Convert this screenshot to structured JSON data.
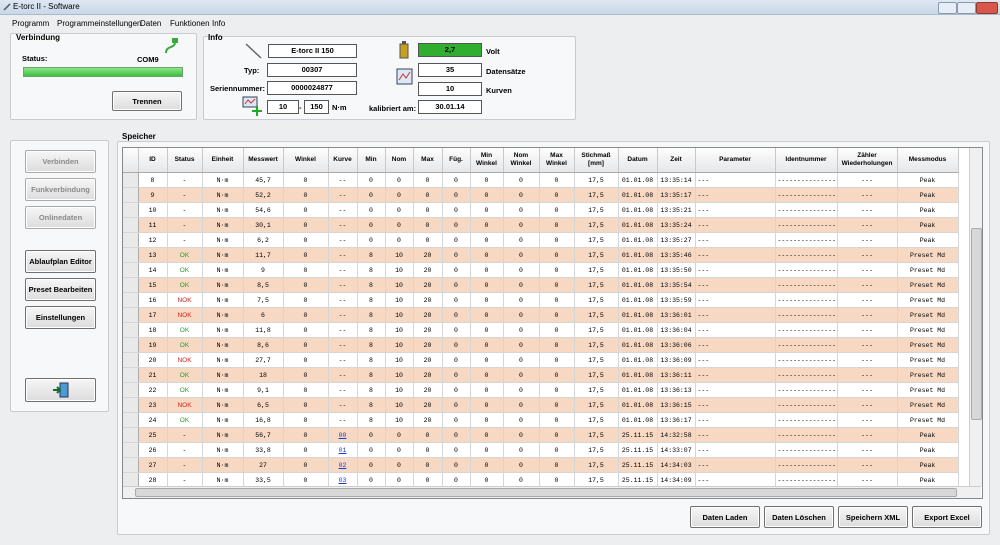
{
  "window": {
    "title": "E-torc II - Software"
  },
  "menu": [
    "Programm",
    "Programmeinstellungen",
    "Daten",
    "Funktionen",
    "Info"
  ],
  "verbindung": {
    "title": "Verbindung",
    "status_label": "Status:",
    "port": "COM9",
    "button": "Trennen"
  },
  "info": {
    "title": "Info",
    "device": "E-torc II 150",
    "typ_label": "Typ:",
    "typ": "00307",
    "serial_label": "Seriennummer:",
    "serial": "0000024877",
    "range_min": "10",
    "range_sep": "-",
    "range_max": "150",
    "range_unit": "N·m",
    "calib_label": "kalibriert am:",
    "calib": "30.01.14",
    "volt": "2,7",
    "volt_label": "Volt",
    "records": "35",
    "records_label": "Datensätze",
    "curves": "10",
    "curves_label": "Kurven"
  },
  "sidebar": {
    "buttons": [
      "Verbinden",
      "Funkverbindung",
      "Onlinedaten",
      "Ablaufplan Editor",
      "Preset Bearbeiten",
      "Einstellungen"
    ]
  },
  "speicher": {
    "title": "Speicher",
    "columns": [
      "ID",
      "Status",
      "Einheit",
      "Messwert",
      "Winkel",
      "Kurve",
      "Min",
      "Nom",
      "Max",
      "Füg.",
      "Min\nWinkel",
      "Nom\nWinkel",
      "Max\nWinkel",
      "Stichmaß\n[mm]",
      "Datum",
      "Zeit",
      "Parameter",
      "Identnummer",
      "Zähler\nWiederholungen",
      "Messmodus"
    ],
    "rows": [
      [
        "8",
        "-",
        "N·m",
        "45,7",
        "0",
        "--",
        "0",
        "0",
        "0",
        "0",
        "0",
        "0",
        "0",
        "17,5",
        "01.01.08",
        "13:35:14",
        "---",
        "---------------",
        "---",
        "Peak"
      ],
      [
        "9",
        "-",
        "N·m",
        "52,2",
        "0",
        "--",
        "0",
        "0",
        "0",
        "0",
        "0",
        "0",
        "0",
        "17,5",
        "01.01.08",
        "13:35:17",
        "---",
        "---------------",
        "---",
        "Peak"
      ],
      [
        "10",
        "-",
        "N·m",
        "54,6",
        "0",
        "--",
        "0",
        "0",
        "0",
        "0",
        "0",
        "0",
        "0",
        "17,5",
        "01.01.08",
        "13:35:21",
        "---",
        "---------------",
        "---",
        "Peak"
      ],
      [
        "11",
        "-",
        "N·m",
        "30,1",
        "0",
        "--",
        "0",
        "0",
        "0",
        "0",
        "0",
        "0",
        "0",
        "17,5",
        "01.01.08",
        "13:35:24",
        "---",
        "---------------",
        "---",
        "Peak"
      ],
      [
        "12",
        "-",
        "N·m",
        "6,2",
        "0",
        "--",
        "0",
        "0",
        "0",
        "0",
        "0",
        "0",
        "0",
        "17,5",
        "01.01.08",
        "13:35:27",
        "---",
        "---------------",
        "---",
        "Peak"
      ],
      [
        "13",
        "OK",
        "N·m",
        "11,7",
        "0",
        "--",
        "8",
        "10",
        "20",
        "0",
        "0",
        "0",
        "0",
        "17,5",
        "01.01.08",
        "13:35:46",
        "---",
        "---------------",
        "---",
        "Preset Md"
      ],
      [
        "14",
        "OK",
        "N·m",
        "9",
        "0",
        "--",
        "8",
        "10",
        "20",
        "0",
        "0",
        "0",
        "0",
        "17,5",
        "01.01.08",
        "13:35:50",
        "---",
        "---------------",
        "---",
        "Preset Md"
      ],
      [
        "15",
        "OK",
        "N·m",
        "8,5",
        "0",
        "--",
        "8",
        "10",
        "20",
        "0",
        "0",
        "0",
        "0",
        "17,5",
        "01.01.08",
        "13:35:54",
        "---",
        "---------------",
        "---",
        "Preset Md"
      ],
      [
        "16",
        "NOK",
        "N·m",
        "7,5",
        "0",
        "--",
        "8",
        "10",
        "20",
        "0",
        "0",
        "0",
        "0",
        "17,5",
        "01.01.08",
        "13:35:59",
        "---",
        "---------------",
        "---",
        "Preset Md"
      ],
      [
        "17",
        "NOK",
        "N·m",
        "6",
        "0",
        "--",
        "8",
        "10",
        "20",
        "0",
        "0",
        "0",
        "0",
        "17,5",
        "01.01.08",
        "13:36:01",
        "---",
        "---------------",
        "---",
        "Preset Md"
      ],
      [
        "18",
        "OK",
        "N·m",
        "11,8",
        "0",
        "--",
        "8",
        "10",
        "20",
        "0",
        "0",
        "0",
        "0",
        "17,5",
        "01.01.08",
        "13:36:04",
        "---",
        "---------------",
        "---",
        "Preset Md"
      ],
      [
        "19",
        "OK",
        "N·m",
        "8,6",
        "0",
        "--",
        "8",
        "10",
        "20",
        "0",
        "0",
        "0",
        "0",
        "17,5",
        "01.01.08",
        "13:36:06",
        "---",
        "---------------",
        "---",
        "Preset Md"
      ],
      [
        "20",
        "NOK",
        "N·m",
        "27,7",
        "0",
        "--",
        "8",
        "10",
        "20",
        "0",
        "0",
        "0",
        "0",
        "17,5",
        "01.01.08",
        "13:36:09",
        "---",
        "---------------",
        "---",
        "Preset Md"
      ],
      [
        "21",
        "OK",
        "N·m",
        "18",
        "0",
        "--",
        "8",
        "10",
        "20",
        "0",
        "0",
        "0",
        "0",
        "17,5",
        "01.01.08",
        "13:36:11",
        "---",
        "---------------",
        "---",
        "Preset Md"
      ],
      [
        "22",
        "OK",
        "N·m",
        "9,1",
        "0",
        "--",
        "8",
        "10",
        "20",
        "0",
        "0",
        "0",
        "0",
        "17,5",
        "01.01.08",
        "13:36:13",
        "---",
        "---------------",
        "---",
        "Preset Md"
      ],
      [
        "23",
        "NOK",
        "N·m",
        "6,5",
        "0",
        "--",
        "8",
        "10",
        "20",
        "0",
        "0",
        "0",
        "0",
        "17,5",
        "01.01.08",
        "13:36:15",
        "---",
        "---------------",
        "---",
        "Preset Md"
      ],
      [
        "24",
        "OK",
        "N·m",
        "16,8",
        "0",
        "--",
        "8",
        "10",
        "20",
        "0",
        "0",
        "0",
        "0",
        "17,5",
        "01.01.08",
        "13:36:17",
        "---",
        "---------------",
        "---",
        "Preset Md"
      ],
      [
        "25",
        "-",
        "N·m",
        "56,7",
        "0",
        "00",
        "0",
        "0",
        "0",
        "0",
        "0",
        "0",
        "0",
        "17,5",
        "25.11.15",
        "14:32:58",
        "---",
        "---------------",
        "---",
        "Peak"
      ],
      [
        "26",
        "-",
        "N·m",
        "33,8",
        "0",
        "01",
        "0",
        "0",
        "0",
        "0",
        "0",
        "0",
        "0",
        "17,5",
        "25.11.15",
        "14:33:07",
        "---",
        "---------------",
        "---",
        "Peak"
      ],
      [
        "27",
        "-",
        "N·m",
        "27",
        "0",
        "02",
        "0",
        "0",
        "0",
        "0",
        "0",
        "0",
        "0",
        "17,5",
        "25.11.15",
        "14:34:03",
        "---",
        "---------------",
        "---",
        "Peak"
      ],
      [
        "28",
        "-",
        "N·m",
        "33,5",
        "0",
        "03",
        "0",
        "0",
        "0",
        "0",
        "0",
        "0",
        "0",
        "17,5",
        "25.11.15",
        "14:34:09",
        "---",
        "---------------",
        "---",
        "Peak"
      ]
    ]
  },
  "footer": {
    "buttons": [
      "Daten Laden",
      "Daten Löschen",
      "Speichern XML",
      "Export Excel"
    ]
  }
}
